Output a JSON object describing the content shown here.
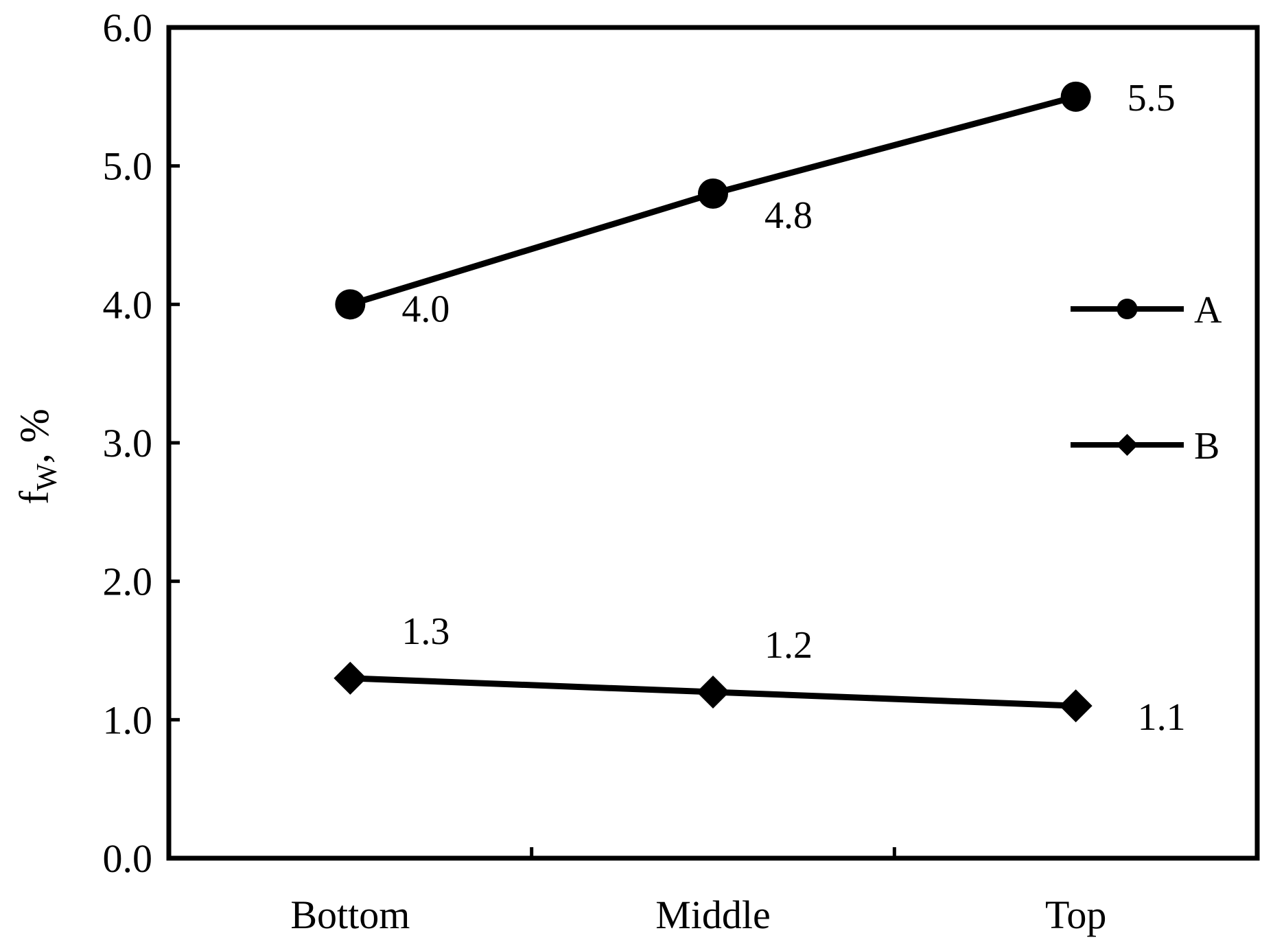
{
  "chart_data": {
    "type": "line",
    "title": "",
    "xlabel": "",
    "ylabel": {
      "main": "f",
      "subscript": "W",
      "suffix": ", %"
    },
    "categories": [
      "Bottom",
      "Middle",
      "Top"
    ],
    "ylim": [
      0,
      6
    ],
    "y_ticks": [
      "0.0",
      "1.0",
      "2.0",
      "3.0",
      "4.0",
      "5.0",
      "6.0"
    ],
    "grid": false,
    "legend_position": "right",
    "series": [
      {
        "name": "A",
        "marker": "circle",
        "values": [
          4.0,
          4.8,
          5.5
        ],
        "labels": [
          "4.0",
          "4.8",
          "5.5"
        ]
      },
      {
        "name": "B",
        "marker": "diamond",
        "values": [
          1.3,
          1.2,
          1.1
        ],
        "labels": [
          "1.3",
          "1.2",
          "1.1"
        ]
      }
    ],
    "colors": {
      "line": "#000000",
      "background": "#ffffff"
    }
  }
}
